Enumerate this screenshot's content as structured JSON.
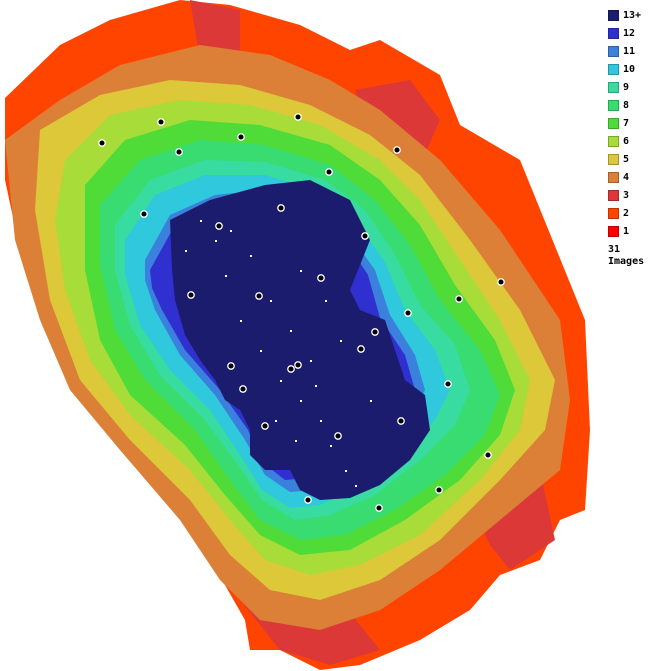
{
  "legend": {
    "items": [
      {
        "label": "13+",
        "color": "#1c1c6e"
      },
      {
        "label": "12",
        "color": "#3030d0"
      },
      {
        "label": "11",
        "color": "#3a80dc"
      },
      {
        "label": "10",
        "color": "#30c8dc"
      },
      {
        "label": "9",
        "color": "#38dca0"
      },
      {
        "label": "8",
        "color": "#38dc70"
      },
      {
        "label": "7",
        "color": "#50dc38"
      },
      {
        "label": "6",
        "color": "#a8dc38"
      },
      {
        "label": "5",
        "color": "#dcc838"
      },
      {
        "label": "4",
        "color": "#dc8038"
      },
      {
        "label": "3",
        "color": "#dc3838"
      },
      {
        "label": "2",
        "color": "#ff4400"
      },
      {
        "label": "1",
        "color": "#ff0000"
      }
    ],
    "image_count": "31",
    "image_count_label": "Images"
  },
  "camera_marker_count": 31
}
